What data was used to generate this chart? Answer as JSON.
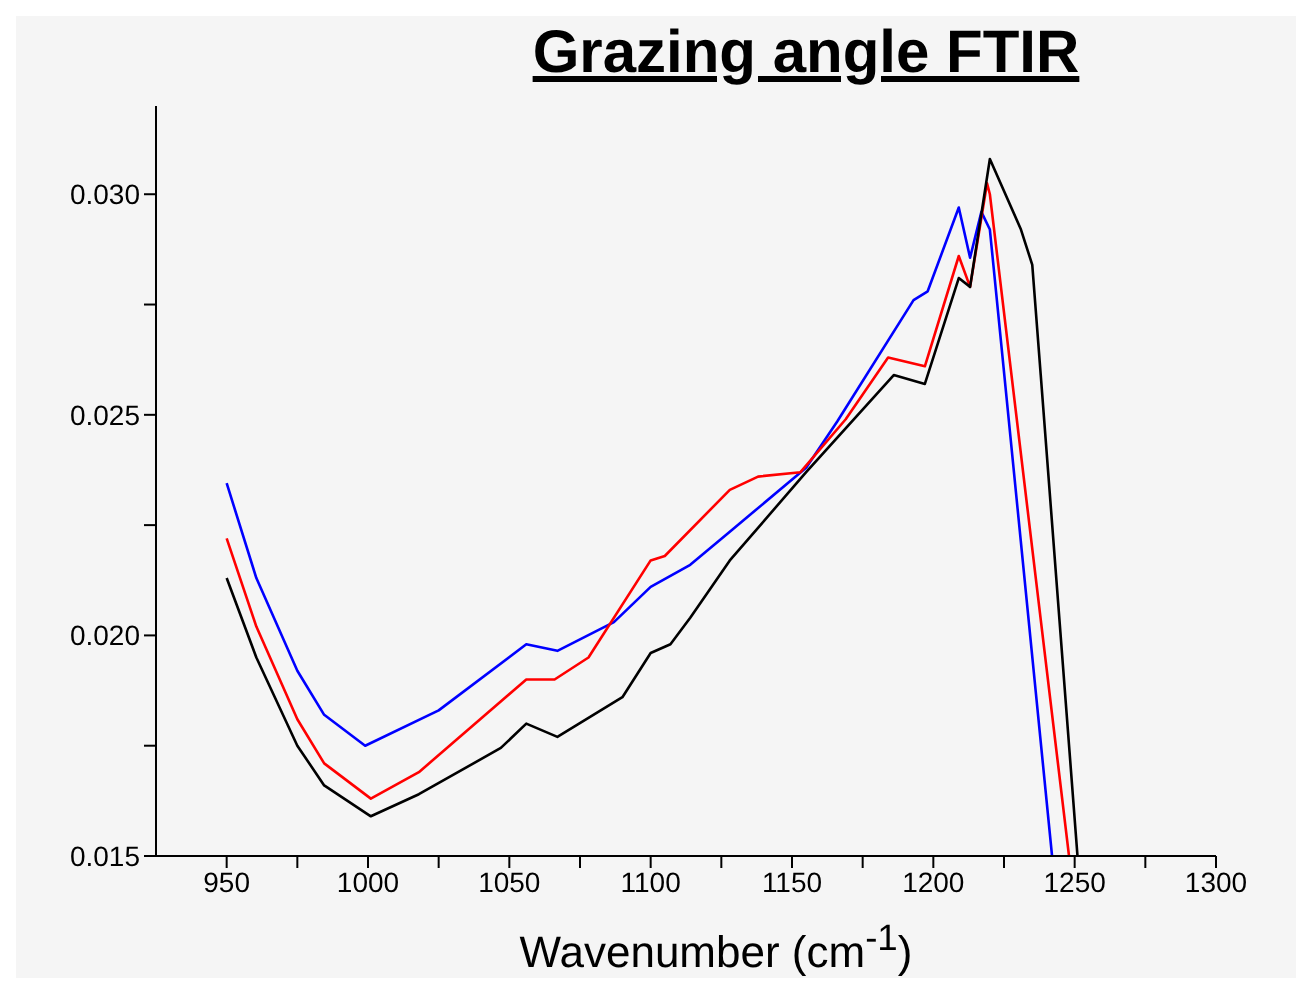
{
  "chart_data": {
    "type": "line",
    "title": "Grazing angle FTIR",
    "xlabel": "Wavenumber (cm$^{-1}$)",
    "xlim": [
      925,
      1300
    ],
    "ylim": [
      0.015,
      0.032
    ],
    "xticks": [
      950,
      {
        "value": 975,
        "label": null
      },
      1000,
      {
        "value": 1025,
        "label": null
      },
      1050,
      {
        "value": 1075,
        "label": null
      },
      1100,
      {
        "value": 1125,
        "label": null
      },
      1150,
      {
        "value": 1175,
        "label": null
      },
      1200,
      {
        "value": 1225,
        "label": null
      },
      1250,
      {
        "value": 1275,
        "label": null
      },
      1300
    ],
    "yticks": [
      {
        "value": 0.015,
        "label": "0.015"
      },
      {
        "value": 0.0175,
        "label": null
      },
      {
        "value": 0.02,
        "label": "0.020"
      },
      {
        "value": 0.0225,
        "label": null
      },
      {
        "value": 0.025,
        "label": "0.025"
      },
      {
        "value": 0.0275,
        "label": null
      },
      {
        "value": 0.03,
        "label": "0.030"
      }
    ],
    "grid": false,
    "legend": false,
    "marker": "none",
    "line_style": "solid",
    "series": [
      {
        "color": "#0000ff",
        "x": [
          950,
          960.5,
          975,
          984.5,
          999,
          1025,
          1056,
          1067,
          1087,
          1100,
          1114,
          1128,
          1155,
          1166,
          1193,
          1198,
          1209,
          1213,
          1217,
          1220,
          1242
        ],
        "values": [
          0.02345,
          0.0213,
          0.0192,
          0.0182,
          0.0175,
          0.0183,
          0.0198,
          0.01965,
          0.0203,
          0.0211,
          0.0216,
          0.02235,
          0.0238,
          0.02485,
          0.0276,
          0.0278,
          0.0297,
          0.02856,
          0.0296,
          0.0292,
          0.015
        ]
      },
      {
        "color": "#ff0000",
        "x": [
          950,
          960.5,
          975,
          984.5,
          1001,
          1018,
          1056,
          1066,
          1078,
          1100,
          1105,
          1128,
          1138,
          1153,
          1169,
          1184,
          1197,
          1209,
          1213,
          1219,
          1220,
          1248
        ],
        "values": [
          0.0222,
          0.0202,
          0.0181,
          0.0171,
          0.0163,
          0.0169,
          0.019,
          0.019,
          0.0195,
          0.0217,
          0.0218,
          0.0233,
          0.0236,
          0.0237,
          0.0249,
          0.0263,
          0.0261,
          0.0286,
          0.0279,
          0.03025,
          0.03,
          0.015
        ]
      },
      {
        "color": "#000000",
        "x": [
          950,
          960.5,
          975,
          984.5,
          1001,
          1018,
          1047,
          1056,
          1067,
          1090,
          1100,
          1107,
          1114,
          1128,
          1155,
          1186,
          1197,
          1209,
          1213,
          1220,
          1231,
          1235,
          1238,
          1251
        ],
        "values": [
          0.0213,
          0.0195,
          0.0175,
          0.0166,
          0.0159,
          0.0164,
          0.01745,
          0.018,
          0.0177,
          0.0186,
          0.0196,
          0.0198,
          0.0204,
          0.0217,
          0.0237,
          0.0259,
          0.0257,
          0.0281,
          0.0279,
          0.0308,
          0.0292,
          0.0284,
          0.0259,
          0.015
        ]
      }
    ]
  }
}
